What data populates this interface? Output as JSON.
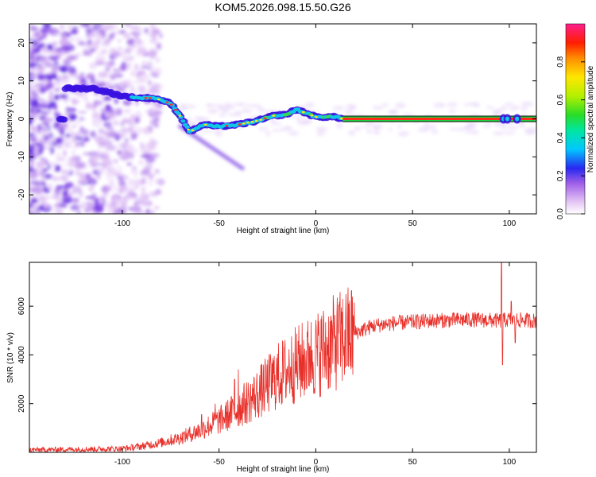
{
  "title": "KOM5.2026.098.15.50.G26",
  "chart_data": [
    {
      "type": "heatmap",
      "xlabel": "Height of straight line (km)",
      "ylabel": "Frequency (Hz)",
      "xlim": [
        -148,
        114
      ],
      "ylim": [
        -25,
        25
      ],
      "xticks": [
        -100,
        -50,
        0,
        50,
        100
      ],
      "yticks": [
        -20,
        -10,
        0,
        10,
        20
      ],
      "ridge": {
        "x": [
          -130,
          -115,
          -100,
          -92,
          -85,
          -80,
          -75,
          -71,
          -68,
          -65,
          -62,
          -58,
          -50,
          -40,
          -30,
          -22,
          -15,
          -10,
          -5,
          0,
          5,
          10,
          14,
          114
        ],
        "freq": [
          8,
          8,
          6,
          5.5,
          5.5,
          5,
          4,
          1.5,
          -1,
          -3.5,
          -2.5,
          -1.5,
          -2,
          -1.5,
          -0.5,
          0.8,
          1.2,
          2.5,
          1.5,
          0.5,
          0.5,
          0.5,
          0,
          0
        ]
      },
      "colorbar": {
        "label": "Normalized spectral amplitude",
        "range": [
          0,
          1
        ],
        "ticks": [
          "0.0",
          "0.2",
          "0.4",
          "0.6",
          "0.8"
        ]
      }
    },
    {
      "type": "line",
      "xlabel": "Height of straight line (km)",
      "ylabel": "SNR (10 * v/v)",
      "xlim": [
        -148,
        114
      ],
      "ylim": [
        0,
        7800
      ],
      "xticks": [
        -100,
        -50,
        0,
        50,
        100
      ],
      "yticks": [
        2000,
        4000,
        6000
      ],
      "color": "#e8302a",
      "envelope": {
        "x": [
          -148,
          -100,
          -90,
          -80,
          -70,
          -60,
          -50,
          -40,
          -30,
          -20,
          -10,
          0,
          10,
          20,
          30,
          40,
          50,
          60,
          80,
          95,
          100,
          114
        ],
        "snr": [
          100,
          150,
          250,
          400,
          600,
          900,
          1300,
          1800,
          2400,
          3100,
          3600,
          4000,
          4500,
          4900,
          5200,
          5300,
          5350,
          5400,
          5450,
          5400,
          5450,
          5400
        ]
      },
      "spikes": [
        {
          "x": -59,
          "snr": 1550
        },
        {
          "x": -52,
          "snr": 2000
        },
        {
          "x": -42,
          "snr": 3000
        },
        {
          "x": -40,
          "snr": 3400
        },
        {
          "x": -13,
          "snr": 3500
        },
        {
          "x": -3,
          "snr": 4350
        },
        {
          "x": 96,
          "snr": 7800
        },
        {
          "x": 96.5,
          "snr": 3600
        },
        {
          "x": 101,
          "snr": 6200
        },
        {
          "x": 103,
          "snr": 4500
        }
      ]
    }
  ]
}
